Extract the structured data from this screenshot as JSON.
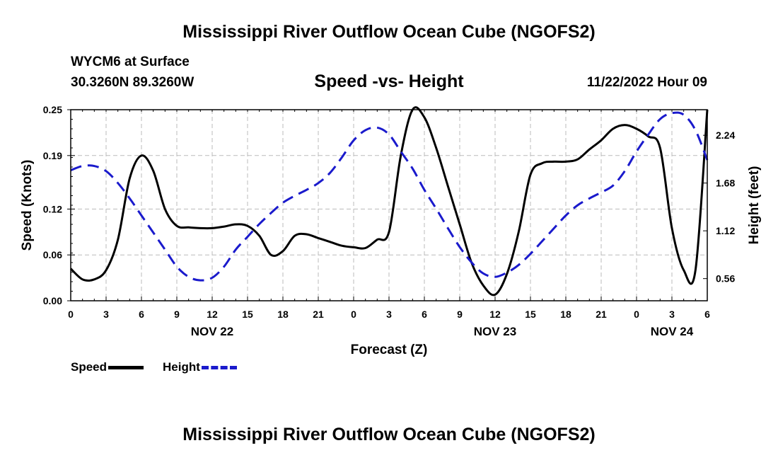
{
  "header": {
    "title": "Mississippi River Outflow Ocean Cube (NGOFS2)",
    "station": "WYCM6 at Surface",
    "coords": "30.3260N  89.3260W",
    "subtitle": "Speed -vs- Height",
    "datestamp": "11/22/2022 Hour 09"
  },
  "footer": {
    "title": "Mississippi River Outflow Ocean Cube (NGOFS2)"
  },
  "legend": {
    "speed": "Speed",
    "height": "Height"
  },
  "colors": {
    "speed": "#000000",
    "height": "#1a1acc",
    "grid": "#bbbbbb"
  },
  "chart_data": {
    "type": "line",
    "title": "Speed -vs- Height",
    "xlabel": "Forecast (Z)",
    "ylabel": "Speed (Knots)",
    "y2label": "Height (feet)",
    "x_range": [
      0,
      54
    ],
    "x_tick_positions": [
      0,
      3,
      6,
      9,
      12,
      15,
      18,
      21,
      24,
      27,
      30,
      33,
      36,
      39,
      42,
      45,
      48,
      51,
      54
    ],
    "x_tick_labels": [
      "0",
      "3",
      "6",
      "9",
      "12",
      "15",
      "18",
      "21",
      "0",
      "3",
      "6",
      "9",
      "12",
      "15",
      "18",
      "21",
      "0",
      "3",
      "6"
    ],
    "date_labels": [
      {
        "label": "NOV 22",
        "x": 12
      },
      {
        "label": "NOV 23",
        "x": 36
      },
      {
        "label": "NOV 24",
        "x": 51
      }
    ],
    "ylim": [
      0,
      0.25
    ],
    "y_ticks": [
      0.0,
      0.06,
      0.12,
      0.19,
      0.25
    ],
    "y_tick_labels": [
      "0.00",
      "0.06",
      "0.12",
      "0.19",
      "0.25"
    ],
    "y2lim": [
      0.3,
      2.54
    ],
    "y2_ticks": [
      0.56,
      1.12,
      1.68,
      2.24
    ],
    "y2_tick_labels": [
      "0.56",
      "1.12",
      "1.68",
      "2.24"
    ],
    "series": [
      {
        "name": "Speed",
        "axis": "left",
        "color": "#000000",
        "dash": "solid",
        "x": [
          0,
          1,
          2,
          3,
          4,
          5,
          6,
          7,
          8,
          9,
          10,
          11,
          12,
          13,
          14,
          15,
          16,
          17,
          18,
          19,
          20,
          21,
          22,
          23,
          24,
          25,
          26,
          27,
          28,
          29,
          30,
          31,
          32,
          33,
          34,
          35,
          36,
          37,
          38,
          39,
          40,
          41,
          42,
          43,
          44,
          45,
          46,
          47,
          48,
          49,
          50,
          51,
          52,
          53,
          54
        ],
        "values": [
          0.042,
          0.028,
          0.028,
          0.04,
          0.08,
          0.16,
          0.19,
          0.17,
          0.12,
          0.098,
          0.096,
          0.095,
          0.095,
          0.097,
          0.1,
          0.098,
          0.085,
          0.06,
          0.065,
          0.085,
          0.087,
          0.082,
          0.077,
          0.072,
          0.07,
          0.069,
          0.08,
          0.09,
          0.19,
          0.25,
          0.24,
          0.2,
          0.15,
          0.1,
          0.05,
          0.02,
          0.008,
          0.035,
          0.09,
          0.165,
          0.18,
          0.182,
          0.182,
          0.185,
          0.198,
          0.21,
          0.225,
          0.23,
          0.225,
          0.215,
          0.2,
          0.095,
          0.04,
          0.04,
          0.25
        ]
      },
      {
        "name": "Height",
        "axis": "right",
        "color": "#1a1acc",
        "dash": "dashed",
        "x": [
          0,
          1,
          2,
          3,
          4,
          5,
          6,
          7,
          8,
          9,
          10,
          11,
          12,
          13,
          14,
          15,
          16,
          17,
          18,
          19,
          20,
          21,
          22,
          23,
          24,
          25,
          26,
          27,
          28,
          29,
          30,
          31,
          32,
          33,
          34,
          35,
          36,
          37,
          38,
          39,
          40,
          41,
          42,
          43,
          44,
          45,
          46,
          47,
          48,
          49,
          50,
          51,
          52,
          53,
          54
        ],
        "values": [
          1.83,
          1.88,
          1.88,
          1.82,
          1.68,
          1.5,
          1.3,
          1.1,
          0.9,
          0.7,
          0.58,
          0.54,
          0.57,
          0.7,
          0.9,
          1.05,
          1.2,
          1.33,
          1.45,
          1.53,
          1.6,
          1.68,
          1.8,
          1.98,
          2.18,
          2.3,
          2.33,
          2.25,
          2.05,
          1.85,
          1.6,
          1.38,
          1.15,
          0.93,
          0.75,
          0.62,
          0.58,
          0.63,
          0.72,
          0.85,
          1.0,
          1.15,
          1.3,
          1.42,
          1.5,
          1.57,
          1.65,
          1.82,
          2.05,
          2.25,
          2.43,
          2.5,
          2.48,
          2.3,
          1.95
        ]
      }
    ]
  }
}
